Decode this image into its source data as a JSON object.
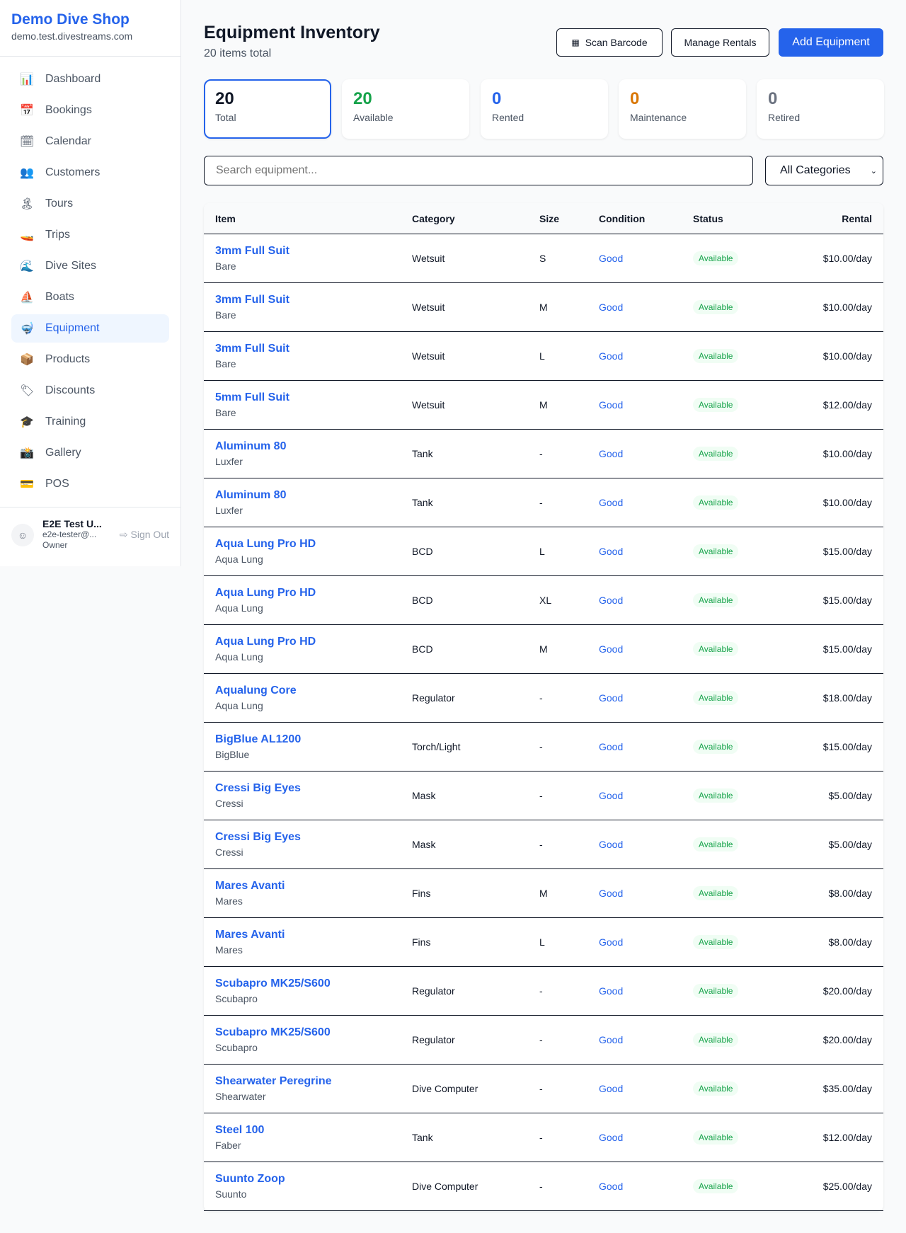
{
  "sidebar": {
    "brand": "Demo Dive Shop",
    "url": "demo.test.divestreams.com",
    "items": [
      {
        "label": "Dashboard",
        "icon": "📊",
        "name": "bar-chart-icon"
      },
      {
        "label": "Bookings",
        "icon": "📅",
        "name": "calendar-17-icon"
      },
      {
        "label": "Calendar",
        "icon": "🗓",
        "name": "calendar-icon"
      },
      {
        "label": "Customers",
        "icon": "👥",
        "name": "people-icon"
      },
      {
        "label": "Tours",
        "icon": "🏝",
        "name": "island-icon"
      },
      {
        "label": "Trips",
        "icon": "🚤",
        "name": "speedboat-icon"
      },
      {
        "label": "Dive Sites",
        "icon": "🌊",
        "name": "wave-icon"
      },
      {
        "label": "Boats",
        "icon": "⛵",
        "name": "sailboat-icon"
      },
      {
        "label": "Equipment",
        "icon": "🤿",
        "name": "diving-mask-icon",
        "active": true
      },
      {
        "label": "Products",
        "icon": "📦",
        "name": "package-icon"
      },
      {
        "label": "Discounts",
        "icon": "🏷",
        "name": "tag-icon"
      },
      {
        "label": "Training",
        "icon": "🎓",
        "name": "graduation-cap-icon"
      },
      {
        "label": "Gallery",
        "icon": "📸",
        "name": "camera-icon"
      },
      {
        "label": "POS",
        "icon": "💳",
        "name": "credit-card-icon"
      }
    ],
    "user": {
      "name": "E2E Test U...",
      "email": "e2e-tester@...",
      "role": "Owner",
      "sign_out": "Sign Out"
    }
  },
  "header": {
    "title": "Equipment Inventory",
    "subtitle": "20 items total",
    "scan": "Scan Barcode",
    "manage": "Manage Rentals",
    "add": "Add Equipment"
  },
  "stats": [
    {
      "value": "20",
      "label": "Total",
      "color": "#111827"
    },
    {
      "value": "20",
      "label": "Available",
      "color": "#16a34a"
    },
    {
      "value": "0",
      "label": "Rented",
      "color": "#2563eb"
    },
    {
      "value": "0",
      "label": "Maintenance",
      "color": "#d97706"
    },
    {
      "value": "0",
      "label": "Retired",
      "color": "#6b7280"
    }
  ],
  "filters": {
    "search_placeholder": "Search equipment...",
    "category": "All Categories"
  },
  "table": {
    "headers": [
      "Item",
      "Category",
      "Size",
      "Condition",
      "Status",
      "Rental"
    ],
    "rows": [
      [
        "3mm Full Suit",
        "Bare",
        "Wetsuit",
        "S",
        "Good",
        "Available",
        "$10.00/day"
      ],
      [
        "3mm Full Suit",
        "Bare",
        "Wetsuit",
        "M",
        "Good",
        "Available",
        "$10.00/day"
      ],
      [
        "3mm Full Suit",
        "Bare",
        "Wetsuit",
        "L",
        "Good",
        "Available",
        "$10.00/day"
      ],
      [
        "5mm Full Suit",
        "Bare",
        "Wetsuit",
        "M",
        "Good",
        "Available",
        "$12.00/day"
      ],
      [
        "Aluminum 80",
        "Luxfer",
        "Tank",
        "-",
        "Good",
        "Available",
        "$10.00/day"
      ],
      [
        "Aluminum 80",
        "Luxfer",
        "Tank",
        "-",
        "Good",
        "Available",
        "$10.00/day"
      ],
      [
        "Aqua Lung Pro HD",
        "Aqua Lung",
        "BCD",
        "L",
        "Good",
        "Available",
        "$15.00/day"
      ],
      [
        "Aqua Lung Pro HD",
        "Aqua Lung",
        "BCD",
        "XL",
        "Good",
        "Available",
        "$15.00/day"
      ],
      [
        "Aqua Lung Pro HD",
        "Aqua Lung",
        "BCD",
        "M",
        "Good",
        "Available",
        "$15.00/day"
      ],
      [
        "Aqualung Core",
        "Aqua Lung",
        "Regulator",
        "-",
        "Good",
        "Available",
        "$18.00/day"
      ],
      [
        "BigBlue AL1200",
        "BigBlue",
        "Torch/Light",
        "-",
        "Good",
        "Available",
        "$15.00/day"
      ],
      [
        "Cressi Big Eyes",
        "Cressi",
        "Mask",
        "-",
        "Good",
        "Available",
        "$5.00/day"
      ],
      [
        "Cressi Big Eyes",
        "Cressi",
        "Mask",
        "-",
        "Good",
        "Available",
        "$5.00/day"
      ],
      [
        "Mares Avanti",
        "Mares",
        "Fins",
        "M",
        "Good",
        "Available",
        "$8.00/day"
      ],
      [
        "Mares Avanti",
        "Mares",
        "Fins",
        "L",
        "Good",
        "Available",
        "$8.00/day"
      ],
      [
        "Scubapro MK25/S600",
        "Scubapro",
        "Regulator",
        "-",
        "Good",
        "Available",
        "$20.00/day"
      ],
      [
        "Scubapro MK25/S600",
        "Scubapro",
        "Regulator",
        "-",
        "Good",
        "Available",
        "$20.00/day"
      ],
      [
        "Shearwater Peregrine",
        "Shearwater",
        "Dive Computer",
        "-",
        "Good",
        "Available",
        "$35.00/day"
      ],
      [
        "Steel 100",
        "Faber",
        "Tank",
        "-",
        "Good",
        "Available",
        "$12.00/day"
      ],
      [
        "Suunto Zoop",
        "Suunto",
        "Dive Computer",
        "-",
        "Good",
        "Available",
        "$25.00/day"
      ]
    ]
  }
}
